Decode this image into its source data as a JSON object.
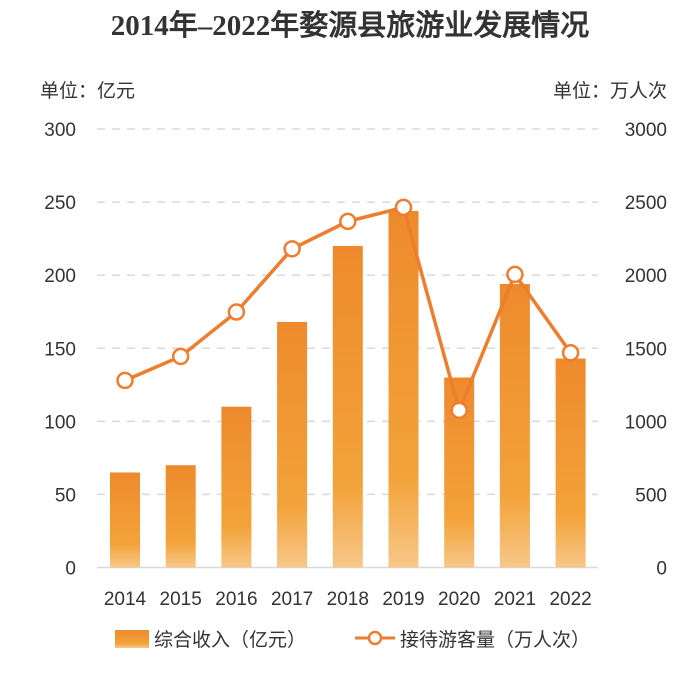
{
  "chart_data": {
    "type": "bar+line",
    "title": "2014年–2022年婺源县旅游业发展情况",
    "left_unit": "单位：亿元",
    "right_unit": "单位：万人次",
    "categories": [
      "2014",
      "2015",
      "2016",
      "2017",
      "2018",
      "2019",
      "2020",
      "2021",
      "2022"
    ],
    "series": [
      {
        "name": "综合收入（亿元）",
        "type": "bar",
        "axis": "left",
        "color": "#ef8b2c",
        "values": [
          65,
          70,
          110,
          168,
          220,
          244,
          130,
          194,
          143
        ]
      },
      {
        "name": "接待游客量（万人次）",
        "type": "line",
        "axis": "right",
        "color": "#ef7d2e",
        "values": [
          1280,
          1444,
          1748,
          2180,
          2368,
          2464,
          1075,
          2005,
          1469
        ]
      }
    ],
    "left_axis": {
      "ylim": [
        0,
        300
      ],
      "ticks": [
        "0",
        "50",
        "100",
        "150",
        "200",
        "250",
        "300"
      ]
    },
    "right_axis": {
      "ylim": [
        0,
        3000
      ],
      "ticks": [
        "0",
        "500",
        "1000",
        "1500",
        "2000",
        "2500",
        "3000"
      ]
    },
    "grid": true,
    "legend_placement": "bottom"
  }
}
